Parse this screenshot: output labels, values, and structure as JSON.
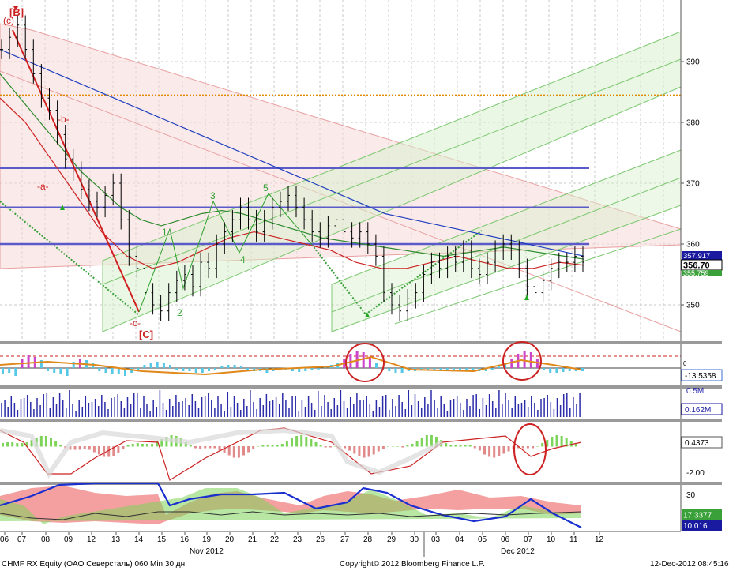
{
  "chart_data": {
    "type": "line",
    "title": "",
    "security": "CHMF RX Equity (OAO Северсталь) 060 Min 30 дн.",
    "copyright": "Copyright© 2012 Bloomberg Finance L.P.",
    "timestamp": "12-Dec-2012 08:45:16",
    "x_tick_labels": [
      "06",
      "07",
      "08",
      "09",
      "12",
      "13",
      "14",
      "15",
      "16",
      "19",
      "20",
      "21",
      "22",
      "23",
      "26",
      "27",
      "28",
      "29",
      "30",
      "03",
      "04",
      "05",
      "06",
      "07",
      "10",
      "11",
      "12"
    ],
    "month_labels": [
      "Nov 2012",
      "Dec 2012"
    ],
    "price_panel": {
      "ylim": [
        343,
        399
      ],
      "y_ticks": [
        350,
        360,
        370,
        380,
        390
      ],
      "last_price_labels": [
        "357.917",
        "356.70",
        "355.759"
      ],
      "horizontal_levels": [
        372.5,
        366,
        360
      ],
      "dotted_level": 384.5,
      "close_series": [
        392,
        394,
        396,
        392,
        388,
        384,
        382,
        378,
        374,
        372,
        369,
        367,
        366,
        368,
        370,
        364,
        358,
        356,
        352,
        350,
        349,
        352,
        354,
        355,
        353,
        357,
        356,
        360,
        362,
        364,
        366,
        364,
        362,
        364,
        366,
        367,
        368,
        366,
        364,
        362,
        361,
        363,
        364,
        362,
        361,
        362,
        360,
        358,
        352,
        350,
        349,
        351,
        352,
        355,
        357,
        356,
        358,
        357,
        359,
        356,
        355,
        357,
        359,
        360,
        359,
        356,
        353,
        352,
        354,
        356,
        357,
        357,
        358,
        357
      ],
      "ma_blue": [
        392,
        391,
        390,
        389,
        388,
        387,
        386,
        385,
        384,
        383,
        382,
        381,
        380,
        379,
        378,
        377,
        376,
        375,
        374,
        373,
        372,
        371,
        370,
        369,
        368,
        367,
        366,
        365,
        364.5,
        364,
        363.5,
        363,
        362.5,
        362,
        361.5,
        361,
        360.5,
        360,
        359.5,
        359,
        358.5,
        358
      ],
      "ma_green": [
        388,
        384,
        380,
        376,
        372,
        369,
        366,
        364,
        363,
        364,
        365,
        365.5,
        365,
        364,
        363,
        362,
        361,
        360.5,
        360,
        359.5,
        359,
        358.5,
        358,
        358.5,
        359,
        359.5,
        359,
        358.5,
        358,
        357.5
      ],
      "ma_red": [
        384,
        380,
        374,
        368,
        362,
        358,
        356,
        357,
        359,
        361,
        362,
        361,
        360,
        359,
        357,
        356,
        356,
        357,
        358,
        357,
        356,
        356,
        357,
        356.5
      ],
      "wave_labels": [
        "(c)",
        "[B]",
        "-a-",
        "-b-",
        "-c-",
        "[C]",
        "1",
        "2",
        "3",
        "4",
        "5"
      ]
    },
    "oscillator_panel": {
      "last_value_label": "-13.5358"
    },
    "volume_panel": {
      "ylabel_tick": "0.5M",
      "last_value_label": "0.162M"
    },
    "momentum_panel": {
      "y_ticks": [
        "0.4373",
        "-2.00"
      ]
    },
    "dmi_panel": {
      "y_ticks": [
        "30"
      ],
      "last_value_labels": [
        "17.3377",
        "10.016"
      ]
    },
    "colors": {
      "price_bar": "#000000",
      "ma_blue": "#1f3fbf",
      "ma_green": "#2e8b2e",
      "ma_red": "#cc2222",
      "level_line": "#5a5ac8",
      "dotted_level": "#e08a00",
      "channel_red_fill": "#f7d9d9",
      "channel_green_fill": "#d8f0cc",
      "panel_divider": "#9a9a9a",
      "osc_magenta": "#cc44cc",
      "osc_cyan": "#55c8e6",
      "osc_line": "#e0891a",
      "volume_bar": "#2c2caa",
      "tag_blue": "#1a1aa0",
      "circle": "#cc2222"
    }
  },
  "footer": {
    "left": "CHMF RX Equity (OAO Северсталь) 060 Min 30 дн.",
    "center": "Copyright© 2012 Bloomberg Finance L.P.",
    "right": "12-Dec-2012 08:45:16"
  }
}
